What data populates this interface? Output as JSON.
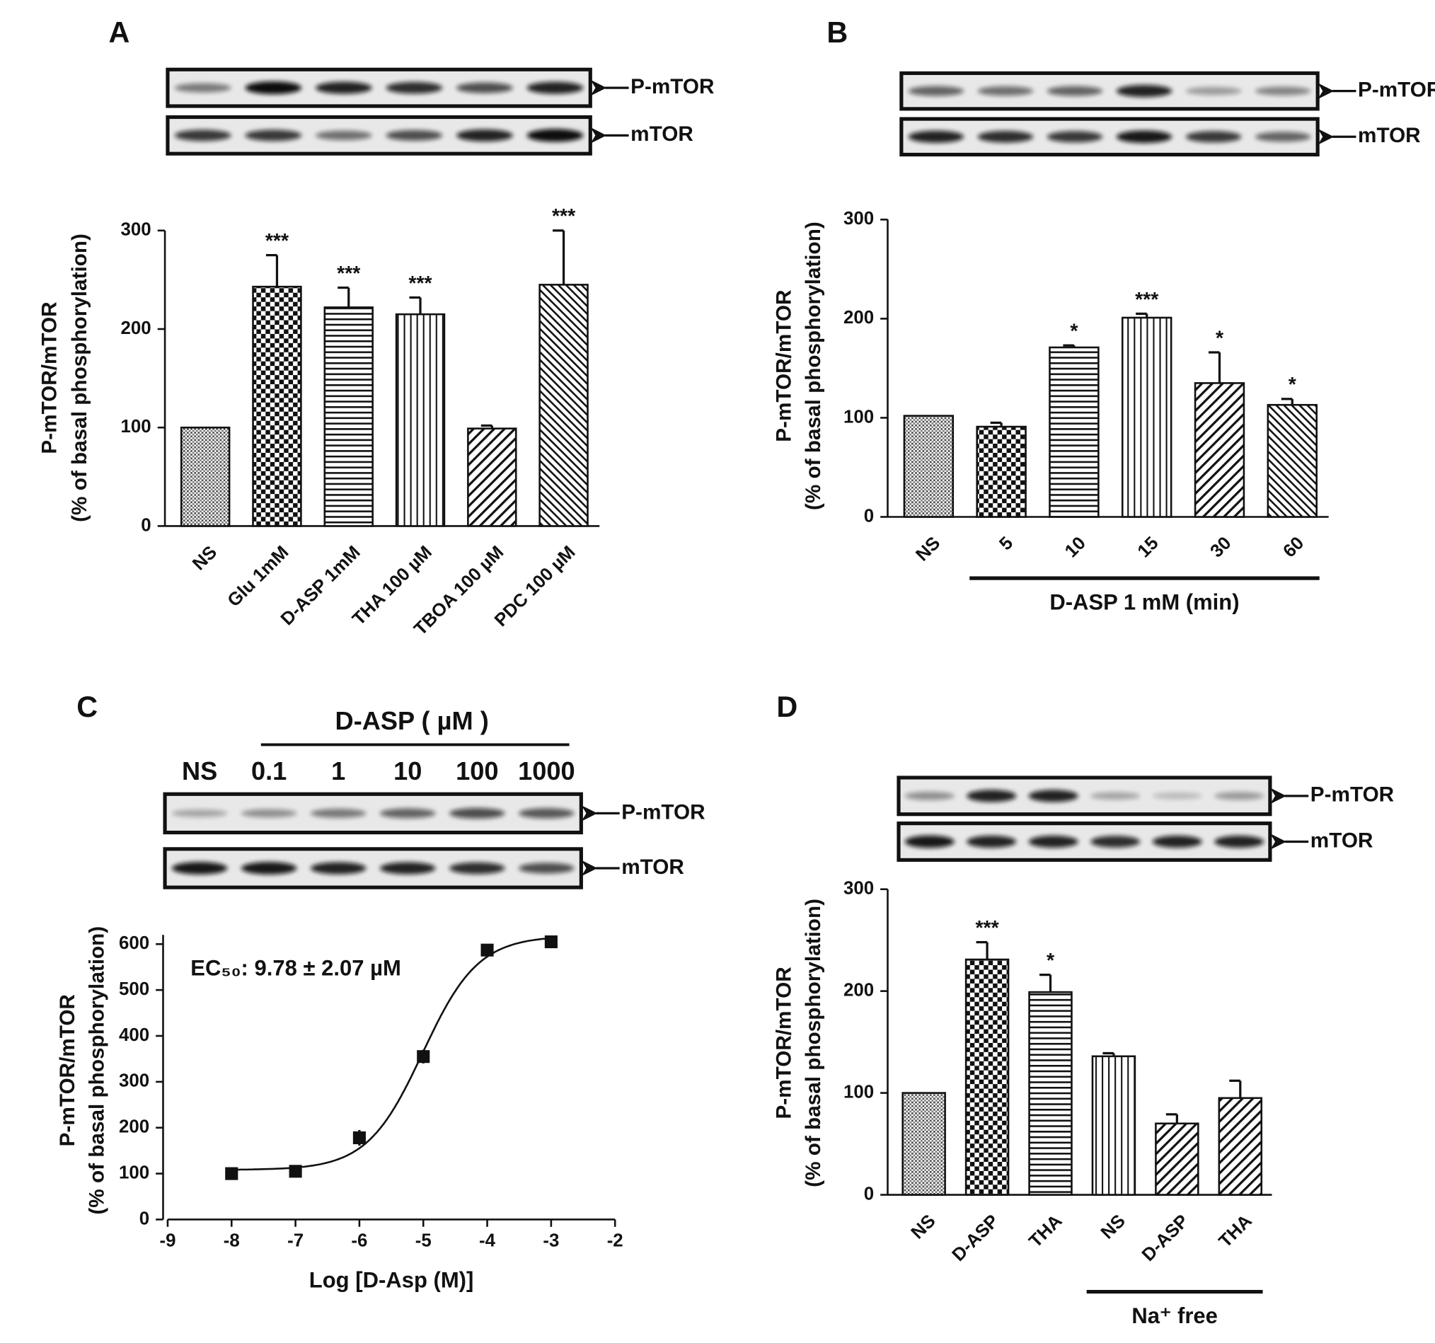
{
  "chart_data": [
    {
      "type": "bar",
      "panel": "A",
      "blot_labels": [
        "P-mTOR",
        "mTOR"
      ],
      "categories": [
        "NS",
        "Glu 1mM",
        "D-ASP 1mM",
        "THA 100 µM",
        "TBOA 100 µM",
        "PDC 100 µM"
      ],
      "values": [
        100,
        243,
        222,
        215,
        99,
        245
      ],
      "errors": [
        0,
        32,
        20,
        17,
        3,
        55
      ],
      "significance": [
        null,
        "***",
        "***",
        "***",
        null,
        "***"
      ],
      "patterns": [
        "dots",
        "checker",
        "hlines",
        "vlines",
        "diag",
        "diag2"
      ],
      "ylabel": [
        "P-mTOR/mTOR",
        "(% of basal phosphorylation)"
      ],
      "ylim": [
        0,
        300
      ],
      "yticks": [
        0,
        100,
        200,
        300
      ]
    },
    {
      "type": "bar",
      "panel": "B",
      "blot_labels": [
        "P-mTOR",
        "mTOR"
      ],
      "categories": [
        "NS",
        "5",
        "10",
        "15",
        "30",
        "60"
      ],
      "values": [
        102,
        91,
        171,
        201,
        135,
        113
      ],
      "errors": [
        0,
        4,
        2,
        4,
        31,
        6
      ],
      "significance": [
        null,
        null,
        "*",
        "***",
        "*",
        "*"
      ],
      "patterns": [
        "dots",
        "checker",
        "hlines",
        "vlines",
        "diag",
        "diag2"
      ],
      "group_label": "D-ASP 1 mM (min)",
      "ylabel": [
        "P-mTOR/mTOR",
        "(% of basal phosphorylation)"
      ],
      "ylim": [
        0,
        300
      ],
      "yticks": [
        0,
        100,
        200,
        300
      ]
    },
    {
      "type": "scatter",
      "panel": "C",
      "blot_labels": [
        "P-mTOR",
        "mTOR"
      ],
      "blot_header": "D-ASP ( µM )",
      "lanes": [
        "NS",
        "0.1",
        "1",
        "10",
        "100",
        "1000"
      ],
      "x": [
        -8,
        -7,
        -6,
        -5,
        -4,
        -3
      ],
      "values": [
        100,
        105,
        178,
        355,
        587,
        605
      ],
      "errors": [
        0,
        0,
        17,
        15,
        0,
        0
      ],
      "fit": {
        "bottom": 108,
        "top": 618,
        "log_ec50": -5.01,
        "hill": 1
      },
      "annotation": "EC₅₀: 9.78 ± 2.07 µM",
      "xlabel": "Log [D-Asp (M)]",
      "ylabel": [
        "P-mTOR/mTOR",
        "(% of basal phosphorylation)"
      ],
      "xlim": [
        -9,
        -2
      ],
      "xticks": [
        -9,
        -8,
        -7,
        -6,
        -5,
        -4,
        -3,
        -2
      ],
      "ylim": [
        0,
        620
      ],
      "yticks": [
        0,
        100,
        200,
        300,
        400,
        500,
        600
      ]
    },
    {
      "type": "bar",
      "panel": "D",
      "blot_labels": [
        "P-mTOR",
        "mTOR"
      ],
      "categories": [
        "NS",
        "D-ASP",
        "THA",
        "NS",
        "D-ASP",
        "THA"
      ],
      "values": [
        100,
        231,
        199,
        136,
        70,
        95
      ],
      "errors": [
        0,
        17,
        17,
        3,
        9,
        17
      ],
      "significance": [
        null,
        "***",
        "*",
        null,
        null,
        null
      ],
      "patterns": [
        "dots",
        "checker",
        "hlines",
        "vlines",
        "diag",
        "diag"
      ],
      "group_label": "Na⁺ free",
      "ylabel": [
        "P-mTOR/mTOR",
        "(% of basal phosphorylation)"
      ],
      "ylim": [
        0,
        300
      ],
      "yticks": [
        0,
        100,
        200,
        300
      ]
    }
  ]
}
